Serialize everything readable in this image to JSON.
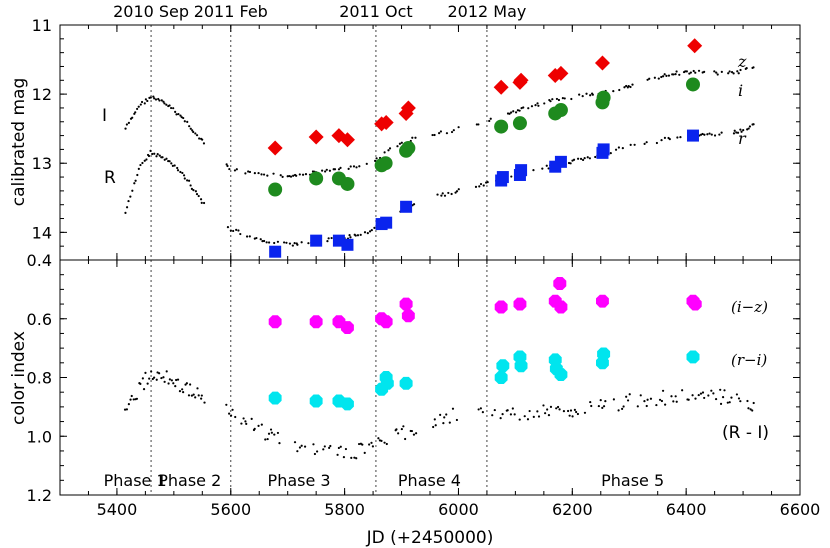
{
  "chart_data": {
    "type": "scatter",
    "x_label": "JD (+2450000)",
    "x_range": [
      5300,
      6600
    ],
    "x_ticks": [
      "5400",
      "5600",
      "5800",
      "6000",
      "6200",
      "6400",
      "6600"
    ],
    "top_panel": {
      "ylabel": "calibrated mag",
      "y_range": [
        11.0,
        14.4
      ],
      "y_inverted": true,
      "y_ticks": [
        "11",
        "12",
        "13",
        "14"
      ],
      "series": [
        {
          "name": "z",
          "marker": "diamond",
          "color": "#ee0000",
          "points": [
            [
              5678,
              12.78
            ],
            [
              5750,
              12.62
            ],
            [
              5790,
              12.6
            ],
            [
              5805,
              12.66
            ],
            [
              5865,
              12.43
            ],
            [
              5873,
              12.41
            ],
            [
              5908,
              12.28
            ],
            [
              5912,
              12.2
            ],
            [
              6075,
              11.9
            ],
            [
              6108,
              11.83
            ],
            [
              6110,
              11.8
            ],
            [
              6170,
              11.73
            ],
            [
              6180,
              11.7
            ],
            [
              6253,
              11.55
            ],
            [
              6415,
              11.3
            ]
          ]
        },
        {
          "name": "i",
          "marker": "circle",
          "color": "#1e8a1e",
          "points": [
            [
              5678,
              13.38
            ],
            [
              5750,
              13.22
            ],
            [
              5790,
              13.22
            ],
            [
              5805,
              13.3
            ],
            [
              5865,
              13.03
            ],
            [
              5872,
              13.0
            ],
            [
              5908,
              12.82
            ],
            [
              5912,
              12.78
            ],
            [
              6075,
              12.47
            ],
            [
              6108,
              12.42
            ],
            [
              6170,
              12.28
            ],
            [
              6180,
              12.23
            ],
            [
              6253,
              12.12
            ],
            [
              6255,
              12.05
            ],
            [
              6412,
              11.86
            ]
          ]
        },
        {
          "name": "r",
          "marker": "square",
          "color": "#0a24ee",
          "points": [
            [
              5678,
              14.28
            ],
            [
              5750,
              14.12
            ],
            [
              5790,
              14.12
            ],
            [
              5805,
              14.18
            ],
            [
              5865,
              13.88
            ],
            [
              5873,
              13.86
            ],
            [
              5908,
              13.63
            ],
            [
              6075,
              13.25
            ],
            [
              6078,
              13.2
            ],
            [
              6108,
              13.17
            ],
            [
              6110,
              13.1
            ],
            [
              6170,
              13.05
            ],
            [
              6180,
              12.98
            ],
            [
              6253,
              12.85
            ],
            [
              6255,
              12.8
            ],
            [
              6412,
              12.6
            ]
          ]
        }
      ],
      "curve_I": [
        [
          5415,
          12.5
        ],
        [
          5440,
          12.16
        ],
        [
          5460,
          12.04
        ],
        [
          5490,
          12.16
        ],
        [
          5520,
          12.38
        ],
        [
          5540,
          12.6
        ],
        [
          5570,
          12.85
        ],
        [
          5600,
          13.08
        ],
        [
          5640,
          13.16
        ],
        [
          5700,
          13.18
        ],
        [
          5760,
          13.12
        ],
        [
          5800,
          13.08
        ],
        [
          5850,
          12.98
        ],
        [
          5880,
          12.78
        ],
        [
          5920,
          12.65
        ],
        [
          5960,
          12.58
        ],
        [
          6000,
          12.5
        ],
        [
          6050,
          12.4
        ],
        [
          6080,
          12.3
        ],
        [
          6120,
          12.2
        ],
        [
          6160,
          12.1
        ],
        [
          6200,
          12.05
        ],
        [
          6250,
          11.98
        ],
        [
          6300,
          11.88
        ],
        [
          6350,
          11.76
        ],
        [
          6380,
          11.7
        ],
        [
          6420,
          11.68
        ],
        [
          6460,
          11.7
        ],
        [
          6490,
          11.68
        ],
        [
          6520,
          11.6
        ]
      ],
      "curve_R": [
        [
          5415,
          13.7
        ],
        [
          5440,
          13.05
        ],
        [
          5460,
          12.84
        ],
        [
          5490,
          12.96
        ],
        [
          5520,
          13.2
        ],
        [
          5540,
          13.45
        ],
        [
          5570,
          13.75
        ],
        [
          5600,
          13.95
        ],
        [
          5640,
          14.08
        ],
        [
          5700,
          14.18
        ],
        [
          5760,
          14.12
        ],
        [
          5800,
          14.08
        ],
        [
          5850,
          13.98
        ],
        [
          5880,
          13.78
        ],
        [
          5920,
          13.6
        ],
        [
          5960,
          13.48
        ],
        [
          6000,
          13.4
        ],
        [
          6050,
          13.3
        ],
        [
          6080,
          13.2
        ],
        [
          6120,
          13.12
        ],
        [
          6160,
          13.05
        ],
        [
          6200,
          12.98
        ],
        [
          6250,
          12.88
        ],
        [
          6300,
          12.75
        ],
        [
          6350,
          12.68
        ],
        [
          6380,
          12.62
        ],
        [
          6420,
          12.6
        ],
        [
          6460,
          12.58
        ],
        [
          6490,
          12.55
        ],
        [
          6520,
          12.45
        ]
      ]
    },
    "bottom_panel": {
      "ylabel": "color index",
      "y_range": [
        0.4,
        1.2
      ],
      "y_inverted": true,
      "y_ticks": [
        "0.4",
        "0.6",
        "0.8",
        "1.0",
        "1.2"
      ],
      "series": [
        {
          "name": "(i−z)",
          "marker": "octagon",
          "color": "#ff00ff",
          "points": [
            [
              5678,
              0.61
            ],
            [
              5750,
              0.61
            ],
            [
              5790,
              0.61
            ],
            [
              5805,
              0.63
            ],
            [
              5865,
              0.6
            ],
            [
              5873,
              0.61
            ],
            [
              5908,
              0.55
            ],
            [
              5912,
              0.59
            ],
            [
              6075,
              0.56
            ],
            [
              6108,
              0.55
            ],
            [
              6170,
              0.54
            ],
            [
              6180,
              0.56
            ],
            [
              6178,
              0.48
            ],
            [
              6253,
              0.54
            ],
            [
              6412,
              0.54
            ],
            [
              6416,
              0.55
            ]
          ]
        },
        {
          "name": "(r−i)",
          "marker": "octagon",
          "color": "#00e5ee",
          "points": [
            [
              5678,
              0.87
            ],
            [
              5750,
              0.88
            ],
            [
              5790,
              0.88
            ],
            [
              5805,
              0.89
            ],
            [
              5865,
              0.84
            ],
            [
              5873,
              0.8
            ],
            [
              5875,
              0.82
            ],
            [
              5908,
              0.82
            ],
            [
              6075,
              0.8
            ],
            [
              6078,
              0.76
            ],
            [
              6108,
              0.73
            ],
            [
              6110,
              0.76
            ],
            [
              6170,
              0.74
            ],
            [
              6172,
              0.77
            ],
            [
              6180,
              0.79
            ],
            [
              6253,
              0.75
            ],
            [
              6255,
              0.72
            ],
            [
              6412,
              0.73
            ]
          ]
        }
      ],
      "curve_RI": [
        [
          5415,
          0.91
        ],
        [
          5440,
          0.84
        ],
        [
          5460,
          0.78
        ],
        [
          5490,
          0.8
        ],
        [
          5520,
          0.84
        ],
        [
          5560,
          0.87
        ],
        [
          5600,
          0.92
        ],
        [
          5650,
          0.98
        ],
        [
          5700,
          1.02
        ],
        [
          5760,
          1.05
        ],
        [
          5800,
          1.06
        ],
        [
          5850,
          1.04
        ],
        [
          5880,
          1.0
        ],
        [
          5920,
          0.98
        ],
        [
          5960,
          0.95
        ],
        [
          6000,
          0.92
        ],
        [
          6050,
          0.93
        ],
        [
          6100,
          0.93
        ],
        [
          6150,
          0.92
        ],
        [
          6200,
          0.91
        ],
        [
          6250,
          0.9
        ],
        [
          6300,
          0.88
        ],
        [
          6350,
          0.87
        ],
        [
          6400,
          0.86
        ],
        [
          6450,
          0.86
        ],
        [
          6500,
          0.88
        ],
        [
          6520,
          0.91
        ]
      ]
    },
    "epochs": [
      {
        "jd": 5460,
        "label": "2010 Sep"
      },
      {
        "jd": 5600,
        "label": "2011 Feb"
      },
      {
        "jd": 5855,
        "label": "2011 Oct"
      },
      {
        "jd": 6050,
        "label": "2012 May"
      }
    ],
    "phases": [
      {
        "jd": 5432,
        "label": "Phase 1"
      },
      {
        "jd": 5528,
        "label": "Phase 2"
      },
      {
        "jd": 5720,
        "label": "Phase 3"
      },
      {
        "jd": 5949,
        "label": "Phase 4"
      },
      {
        "jd": 6306,
        "label": "Phase 5"
      }
    ],
    "labels": {
      "curve_I": "I",
      "curve_R": "R",
      "band_z": "z",
      "band_i": "i",
      "band_r": "r",
      "color_iz": "(i−z)",
      "color_ri": "(r−i)",
      "color_RI": "(R - I)"
    }
  }
}
